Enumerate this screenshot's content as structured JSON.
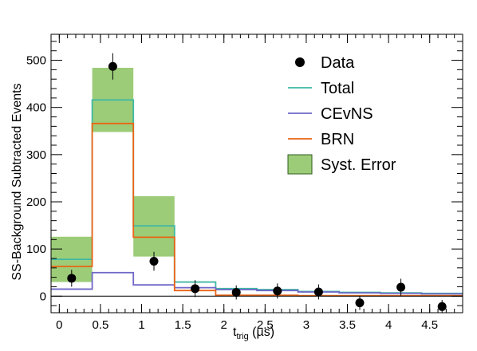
{
  "chart_data": {
    "type": "histogram",
    "title": "",
    "xlabel": "t",
    "xlabel_sub": "trig",
    "xlabel_unit": " (µs)",
    "ylabel": "SS-Background Subtracted Events",
    "xlim": [
      -0.1,
      4.9
    ],
    "ylim": [
      -35,
      555
    ],
    "x_ticks": [
      0,
      0.5,
      1,
      1.5,
      2,
      2.5,
      3,
      3.5,
      4,
      4.5
    ],
    "x_tick_labels": [
      "0",
      "0.5",
      "1",
      "1.5",
      "2",
      "2.5",
      "3",
      "3.5",
      "4",
      "4.5"
    ],
    "y_ticks": [
      0,
      100,
      200,
      300,
      400,
      500
    ],
    "y_tick_labels": [
      "0",
      "100",
      "200",
      "300",
      "400",
      "500"
    ],
    "bin_edges": [
      -0.1,
      0.4,
      0.9,
      1.4,
      1.9,
      2.4,
      2.9,
      3.4,
      3.9,
      4.4,
      4.9
    ],
    "series": [
      {
        "name": "Data",
        "kind": "points",
        "color": "#000000",
        "x": [
          0.15,
          0.65,
          1.15,
          1.65,
          2.15,
          2.65,
          3.15,
          3.65,
          4.15,
          4.65
        ],
        "y": [
          38,
          487,
          74,
          16,
          8,
          11,
          9,
          -14,
          19,
          -22
        ],
        "err": [
          18,
          28,
          20,
          18,
          15,
          16,
          16,
          15,
          18,
          14
        ]
      },
      {
        "name": "Total",
        "kind": "step",
        "color": "#3fb8a4",
        "values": [
          78,
          416,
          149,
          30,
          16,
          14,
          10,
          8,
          7,
          6
        ]
      },
      {
        "name": "CEvNS",
        "kind": "step",
        "color": "#6f67c7",
        "values": [
          15,
          50,
          24,
          18,
          14,
          12,
          9,
          7,
          6,
          5
        ]
      },
      {
        "name": "BRN",
        "kind": "step",
        "color": "#e86414",
        "values": [
          63,
          366,
          125,
          12,
          2,
          2,
          1,
          1,
          1,
          1
        ]
      },
      {
        "name": "Syst. Error",
        "kind": "band",
        "color": "#9ccc78",
        "edge_color": "#2e5e1e",
        "bins": [
          0,
          1,
          2
        ],
        "low": [
          30,
          348,
          84
        ],
        "high": [
          126,
          484,
          212
        ]
      }
    ],
    "legend": {
      "placement": "top-right",
      "entries": [
        "Data",
        "Total",
        "CEvNS",
        "BRN",
        "Syst. Error"
      ]
    },
    "grid": false
  }
}
